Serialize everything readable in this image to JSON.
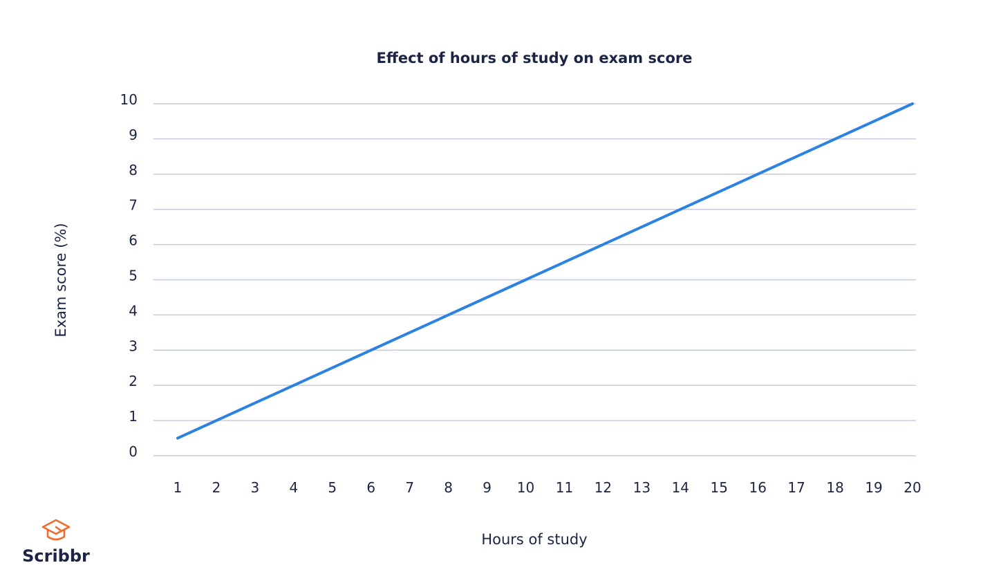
{
  "chart_data": {
    "type": "line",
    "title": "Effect of hours of study on exam score",
    "xlabel": "Hours of study",
    "ylabel": "Exam score (%)",
    "x_ticks": [
      "1",
      "2",
      "3",
      "4",
      "5",
      "6",
      "7",
      "8",
      "9",
      "10",
      "11",
      "12",
      "13",
      "14",
      "15",
      "16",
      "17",
      "18",
      "19",
      "20"
    ],
    "y_ticks": [
      "0",
      "1",
      "2",
      "3",
      "4",
      "5",
      "6",
      "7",
      "8",
      "9",
      "10"
    ],
    "xlim": [
      1,
      20
    ],
    "ylim": [
      0,
      10
    ],
    "grid": "horizontal",
    "series": [
      {
        "x": [
          1,
          20
        ],
        "y": [
          0.5,
          10
        ],
        "color": "#2b82e3"
      }
    ]
  },
  "brand": {
    "name": "Scribbr",
    "icon": "graduation-cap-icon",
    "color": "#f26b2a"
  }
}
